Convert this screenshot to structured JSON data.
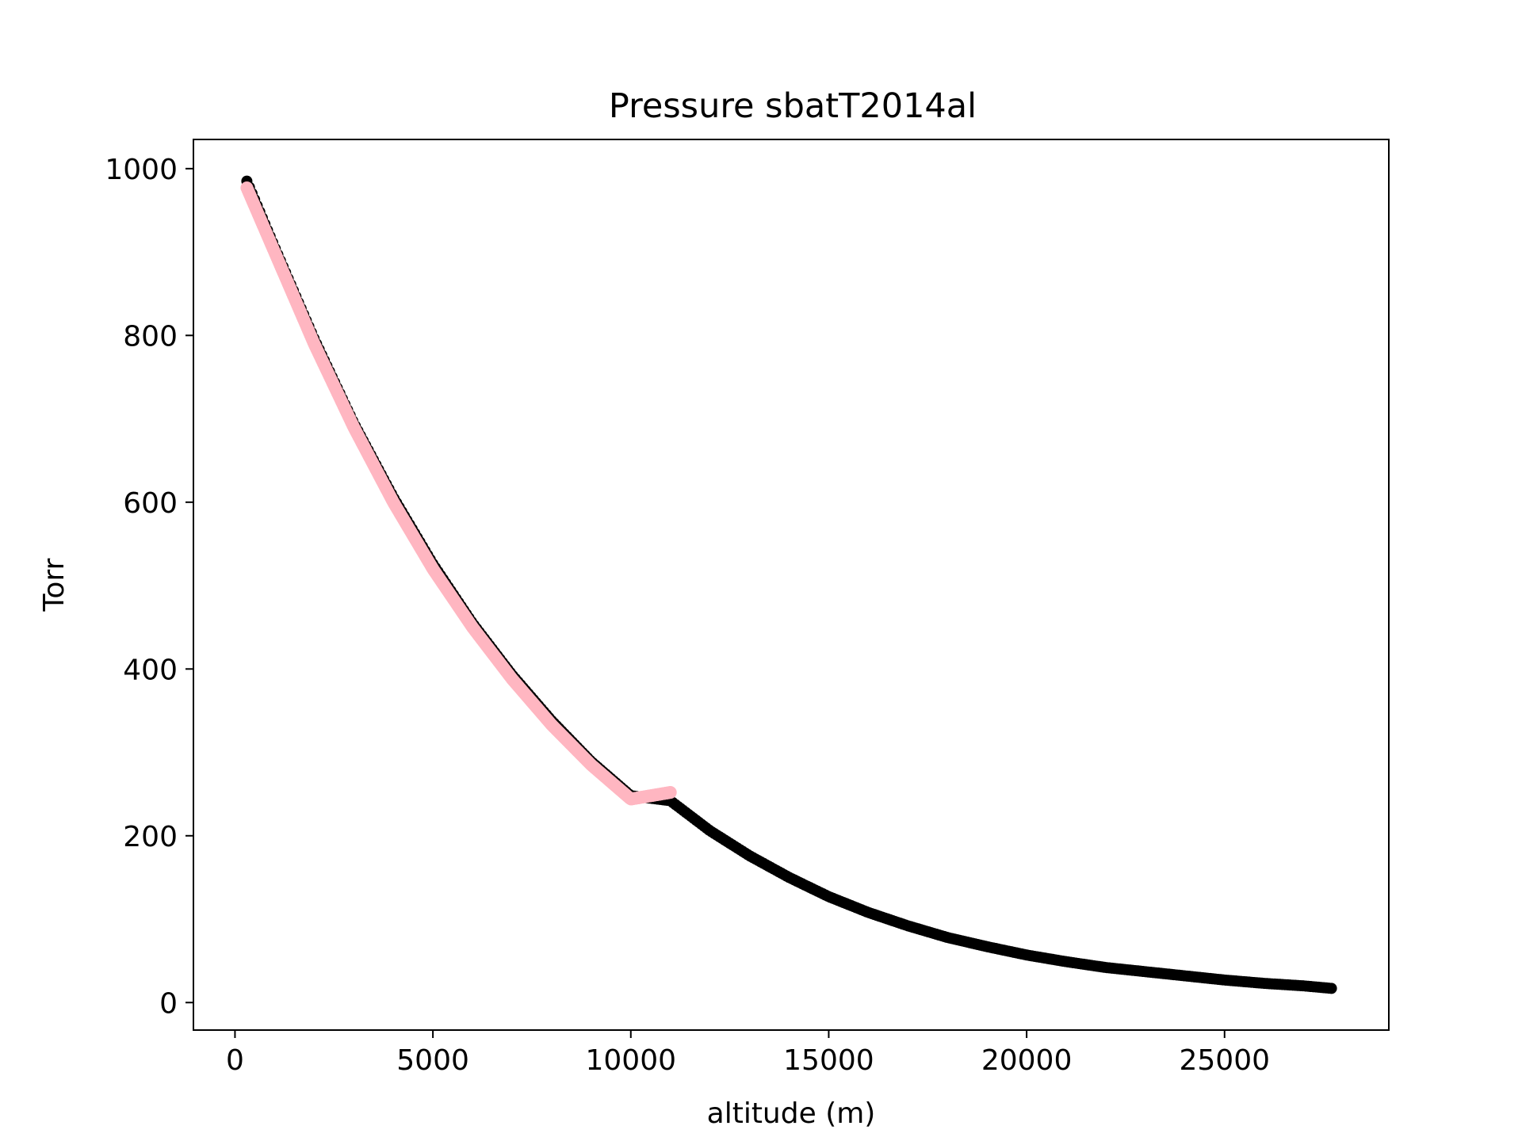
{
  "chart_data": {
    "type": "scatter",
    "title": "Pressure sbatT2014al",
    "xlabel": "altitude (m)",
    "ylabel": "Torr",
    "xlim": [
      -1050,
      29150
    ],
    "ylim": [
      -33,
      1035
    ],
    "xticks": [
      0,
      5000,
      10000,
      15000,
      20000,
      25000
    ],
    "yticks": [
      0,
      200,
      400,
      600,
      800,
      1000
    ],
    "grid": false,
    "series": [
      {
        "color": "#000000",
        "values_x": [
          300,
          1000,
          2000,
          3000,
          4000,
          5000,
          6000,
          7000,
          8000,
          9000,
          10000,
          11000,
          12000,
          13000,
          14000,
          15000,
          16000,
          17000,
          18000,
          19000,
          20000,
          21000,
          22000,
          23000,
          24000,
          25000,
          26000,
          27000,
          27700
        ],
        "values_y": [
          985,
          906,
          796,
          695,
          606,
          526,
          455,
          393,
          338,
          289,
          248,
          242,
          206,
          176,
          150,
          127,
          108,
          92,
          78,
          67,
          57,
          49,
          42,
          37,
          32,
          27,
          23,
          20,
          17
        ]
      },
      {
        "color": "#ffb6c1",
        "values_x": [
          300,
          1000,
          2000,
          3000,
          4000,
          5000,
          6000,
          7000,
          8000,
          9000,
          10000,
          11000
        ],
        "values_y": [
          977,
          900,
          790,
          690,
          600,
          520,
          450,
          388,
          333,
          285,
          244,
          252
        ]
      }
    ]
  }
}
